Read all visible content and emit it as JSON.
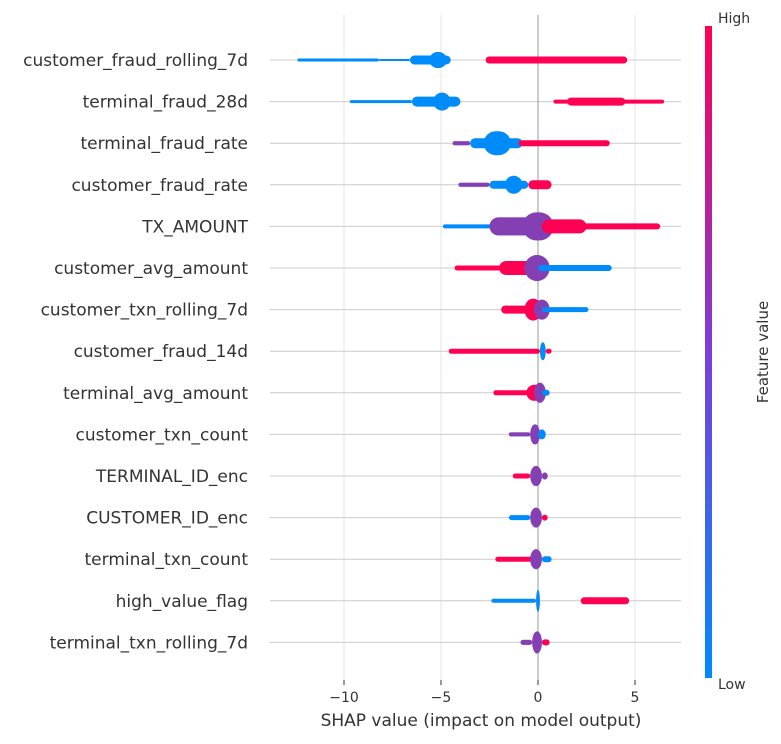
{
  "chart_data": {
    "type": "scatter",
    "subtype": "shap-beeswarm",
    "title": "",
    "xlabel": "SHAP value (impact on model output)",
    "ylabel": "",
    "xlim": [
      -13,
      7.3
    ],
    "xticks": [
      {
        "value": -10,
        "label": "−10"
      },
      {
        "value": -5,
        "label": "−5"
      },
      {
        "value": 0,
        "label": "0"
      },
      {
        "value": 5,
        "label": "5"
      }
    ],
    "grid": "y-only",
    "colorbar": {
      "label": "Feature value",
      "high_label": "High",
      "low_label": "Low",
      "low_color": "#008bfb",
      "mid_color": "#7b3ed7",
      "high_color": "#ff0052"
    },
    "features": [
      {
        "name": "customer_fraud_rolling_7d",
        "segments": [
          {
            "from": -12.4,
            "to": -8.2,
            "thick": 3,
            "color": "low"
          },
          {
            "from": -8.2,
            "to": -6.6,
            "thick": 2,
            "color": "low"
          },
          {
            "from": -6.6,
            "to": -4.5,
            "thick": 9,
            "color": "low"
          },
          {
            "from": -5.6,
            "to": -4.7,
            "thick": 16,
            "color": "low"
          },
          {
            "from": -2.7,
            "to": 4.6,
            "thick": 7,
            "color": "high"
          }
        ]
      },
      {
        "name": "terminal_fraud_28d",
        "segments": [
          {
            "from": -9.7,
            "to": -6.5,
            "thick": 3,
            "color": "low"
          },
          {
            "from": -6.5,
            "to": -4.0,
            "thick": 10,
            "color": "low"
          },
          {
            "from": -5.4,
            "to": -4.5,
            "thick": 18,
            "color": "low"
          },
          {
            "from": 0.8,
            "to": 6.5,
            "thick": 4,
            "color": "high"
          },
          {
            "from": 1.5,
            "to": 4.5,
            "thick": 8,
            "color": "high"
          }
        ]
      },
      {
        "name": "terminal_fraud_rate",
        "segments": [
          {
            "from": -4.4,
            "to": -3.5,
            "thick": 4,
            "color": "mixed"
          },
          {
            "from": -3.5,
            "to": -0.8,
            "thick": 10,
            "color": "low"
          },
          {
            "from": -2.8,
            "to": -1.4,
            "thick": 24,
            "color": "low"
          },
          {
            "from": -1.0,
            "to": 3.7,
            "thick": 6,
            "color": "high"
          }
        ]
      },
      {
        "name": "customer_fraud_rate",
        "segments": [
          {
            "from": -4.1,
            "to": -2.5,
            "thick": 4,
            "color": "mixed"
          },
          {
            "from": -2.5,
            "to": -0.5,
            "thick": 8,
            "color": "low"
          },
          {
            "from": -1.7,
            "to": -0.8,
            "thick": 18,
            "color": "low"
          },
          {
            "from": -0.5,
            "to": 0.7,
            "thick": 9,
            "color": "high"
          }
        ]
      },
      {
        "name": "TX_AMOUNT",
        "segments": [
          {
            "from": -4.9,
            "to": -1.5,
            "thick": 4,
            "color": "low"
          },
          {
            "from": -2.5,
            "to": -0.2,
            "thick": 18,
            "color": "mixed"
          },
          {
            "from": -0.8,
            "to": 0.8,
            "thick": 28,
            "color": "mixed"
          },
          {
            "from": 0.2,
            "to": 6.3,
            "thick": 6,
            "color": "high"
          },
          {
            "from": 0.2,
            "to": 2.5,
            "thick": 14,
            "color": "high"
          }
        ]
      },
      {
        "name": "customer_avg_amount",
        "segments": [
          {
            "from": -4.3,
            "to": -1.5,
            "thick": 5,
            "color": "high"
          },
          {
            "from": -2.0,
            "to": -0.2,
            "thick": 14,
            "color": "high"
          },
          {
            "from": -0.7,
            "to": 0.6,
            "thick": 26,
            "color": "mixed"
          },
          {
            "from": 0.0,
            "to": 3.8,
            "thick": 6,
            "color": "low"
          }
        ]
      },
      {
        "name": "customer_txn_rolling_7d",
        "segments": [
          {
            "from": -1.9,
            "to": -0.3,
            "thick": 8,
            "color": "high"
          },
          {
            "from": -0.7,
            "to": 0.2,
            "thick": 22,
            "color": "high"
          },
          {
            "from": -0.2,
            "to": 0.6,
            "thick": 20,
            "color": "mixed"
          },
          {
            "from": 0.2,
            "to": 2.6,
            "thick": 5,
            "color": "low"
          }
        ]
      },
      {
        "name": "customer_fraud_14d",
        "segments": [
          {
            "from": -4.6,
            "to": 0.1,
            "thick": 5,
            "color": "high"
          },
          {
            "from": 0.1,
            "to": 0.4,
            "thick": 18,
            "color": "low"
          },
          {
            "from": 0.4,
            "to": 0.7,
            "thick": 5,
            "color": "high"
          }
        ]
      },
      {
        "name": "terminal_avg_amount",
        "segments": [
          {
            "from": -2.3,
            "to": -0.2,
            "thick": 5,
            "color": "high"
          },
          {
            "from": -0.6,
            "to": 0.3,
            "thick": 16,
            "color": "high"
          },
          {
            "from": -0.2,
            "to": 0.4,
            "thick": 20,
            "color": "mixed"
          },
          {
            "from": 0.2,
            "to": 0.6,
            "thick": 6,
            "color": "low"
          }
        ]
      },
      {
        "name": "customer_txn_count",
        "segments": [
          {
            "from": -1.5,
            "to": -0.4,
            "thick": 4,
            "color": "mixed"
          },
          {
            "from": -0.4,
            "to": 0.1,
            "thick": 20,
            "color": "mixed"
          },
          {
            "from": 0.0,
            "to": 0.4,
            "thick": 10,
            "color": "low"
          }
        ]
      },
      {
        "name": "TERMINAL_ID_enc",
        "segments": [
          {
            "from": -1.3,
            "to": -0.4,
            "thick": 5,
            "color": "high"
          },
          {
            "from": -0.4,
            "to": 0.2,
            "thick": 20,
            "color": "mixed"
          },
          {
            "from": 0.2,
            "to": 0.5,
            "thick": 7,
            "color": "mixed"
          }
        ]
      },
      {
        "name": "CUSTOMER_ID_enc",
        "segments": [
          {
            "from": -1.5,
            "to": -0.4,
            "thick": 5,
            "color": "low"
          },
          {
            "from": -0.4,
            "to": 0.2,
            "thick": 20,
            "color": "mixed"
          },
          {
            "from": 0.2,
            "to": 0.5,
            "thick": 6,
            "color": "high"
          }
        ]
      },
      {
        "name": "terminal_txn_count",
        "segments": [
          {
            "from": -2.2,
            "to": -0.3,
            "thick": 5,
            "color": "high"
          },
          {
            "from": -0.4,
            "to": 0.2,
            "thick": 20,
            "color": "mixed"
          },
          {
            "from": 0.2,
            "to": 0.7,
            "thick": 6,
            "color": "low"
          }
        ]
      },
      {
        "name": "high_value_flag",
        "segments": [
          {
            "from": -2.4,
            "to": -0.1,
            "thick": 4,
            "color": "low"
          },
          {
            "from": -0.1,
            "to": 0.1,
            "thick": 22,
            "color": "low"
          },
          {
            "from": 2.2,
            "to": 4.7,
            "thick": 7,
            "color": "high"
          }
        ]
      },
      {
        "name": "terminal_txn_rolling_7d",
        "segments": [
          {
            "from": -0.9,
            "to": -0.3,
            "thick": 5,
            "color": "mixed"
          },
          {
            "from": -0.3,
            "to": 0.2,
            "thick": 22,
            "color": "mixed"
          },
          {
            "from": 0.2,
            "to": 0.6,
            "thick": 6,
            "color": "high"
          }
        ]
      }
    ]
  }
}
